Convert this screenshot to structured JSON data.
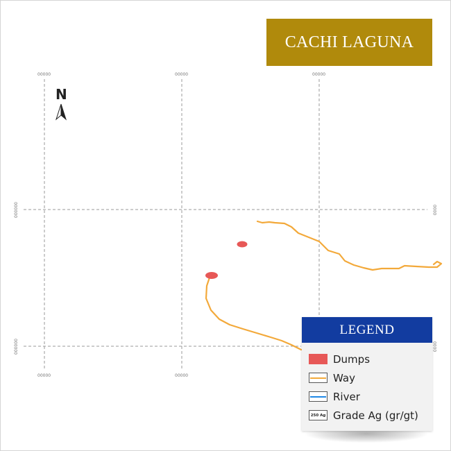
{
  "title": "CACHI LAGUNA",
  "north_label": "N",
  "grid_labels": {
    "top": [
      "00000",
      "00000",
      "00000"
    ],
    "bottom": [
      "00000",
      "00000"
    ],
    "left": [
      "000000",
      "000000"
    ],
    "right": [
      "0000",
      "0000"
    ]
  },
  "legend": {
    "title": "LEGEND",
    "items": [
      {
        "label": "Dumps",
        "type": "fill",
        "color": "#e75857"
      },
      {
        "label": "Way",
        "type": "line",
        "color": "#f3a93a"
      },
      {
        "label": "River",
        "type": "line",
        "color": "#1f88e5"
      },
      {
        "label": "Grade Ag (gr/gt)",
        "type": "box",
        "swatch_text": "250 Ag"
      }
    ]
  },
  "colors": {
    "title_bg": "#b08a0c",
    "legend_header_bg": "#123ca0",
    "dumps": "#e75857",
    "way": "#f3a93a",
    "river": "#1f88e5",
    "grid": "#9a9a9a"
  },
  "map_features": {
    "dumps_count": 2,
    "ways_count": 2,
    "rivers_count": 0
  }
}
